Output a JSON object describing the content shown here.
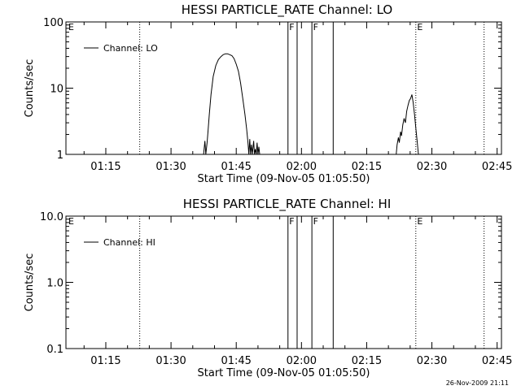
{
  "chart_data": [
    {
      "type": "line",
      "title": "HESSI PARTICLE_RATE Channel: LO",
      "xlabel": "Start Time (09-Nov-05 01:05:50)",
      "ylabel": "Counts/sec",
      "yscale": "log",
      "ylim": [
        1,
        100
      ],
      "xlim_minutes": [
        65.83,
        166.0
      ],
      "xtick_values": [
        75,
        90,
        105,
        120,
        135,
        150,
        165
      ],
      "xtick_labels": [
        "01:15",
        "01:30",
        "01:45",
        "02:00",
        "02:15",
        "02:30",
        "02:45"
      ],
      "ytick_values": [
        1,
        10,
        100
      ],
      "ytick_labels": [
        "1",
        "10",
        "100"
      ],
      "legend": {
        "label": "Channel: LO",
        "position": "top-left"
      },
      "dotted_lines_minutes": [
        82.8,
        146.3,
        162.0
      ],
      "solid_lines_minutes": [
        116.9,
        119.0,
        122.4,
        127.3
      ],
      "markers": [
        {
          "text": "E",
          "x": 66.2
        },
        {
          "text": "F",
          "x": 117.0
        },
        {
          "text": "F",
          "x": 122.5
        },
        {
          "text": "E",
          "x": 146.4
        }
      ],
      "series": [
        {
          "name": "Channel: LO",
          "segments": [
            [
              [
                97.5,
                1
              ],
              [
                97.8,
                1.6
              ],
              [
                98.0,
                1
              ],
              [
                98.3,
                1.5
              ],
              [
                98.5,
                2.2
              ],
              [
                98.8,
                4
              ],
              [
                99.2,
                8
              ],
              [
                99.7,
                15
              ],
              [
                100.3,
                22
              ],
              [
                100.9,
                27
              ],
              [
                101.5,
                30
              ],
              [
                102.0,
                32
              ],
              [
                102.5,
                33
              ],
              [
                103.0,
                33
              ],
              [
                103.5,
                32
              ],
              [
                104.0,
                31
              ],
              [
                104.5,
                28
              ],
              [
                105.0,
                23
              ],
              [
                105.5,
                18
              ],
              [
                106.0,
                12
              ],
              [
                106.5,
                7
              ],
              [
                107.0,
                4
              ],
              [
                107.4,
                2.4
              ],
              [
                107.7,
                1.5
              ],
              [
                107.9,
                1
              ],
              [
                108.1,
                1.7
              ],
              [
                108.3,
                1
              ],
              [
                108.5,
                1.4
              ],
              [
                108.7,
                1
              ],
              [
                109.0,
                1.6
              ],
              [
                109.2,
                1
              ],
              [
                109.4,
                1.2
              ],
              [
                109.6,
                1
              ],
              [
                109.8,
                1.5
              ],
              [
                110.0,
                1
              ],
              [
                110.2,
                1.3
              ],
              [
                110.4,
                1
              ]
            ],
            [
              [
                141.8,
                1
              ],
              [
                142.0,
                1.4
              ],
              [
                142.3,
                1.8
              ],
              [
                142.5,
                1.5
              ],
              [
                142.8,
                2.2
              ],
              [
                143.0,
                1.9
              ],
              [
                143.3,
                2.8
              ],
              [
                143.6,
                3.5
              ],
              [
                143.9,
                3.0
              ],
              [
                144.2,
                4.5
              ],
              [
                144.5,
                5.5
              ],
              [
                144.8,
                6.5
              ],
              [
                145.1,
                7.0
              ],
              [
                145.4,
                8.0
              ],
              [
                145.7,
                6.0
              ],
              [
                146.0,
                4.0
              ],
              [
                146.3,
                2.5
              ],
              [
                146.6,
                1.6
              ],
              [
                146.9,
                1
              ]
            ]
          ]
        }
      ]
    },
    {
      "type": "line",
      "title": "HESSI PARTICLE_RATE Channel: HI",
      "xlabel": "Start Time (09-Nov-05 01:05:50)",
      "ylabel": "Counts/sec",
      "yscale": "log",
      "ylim": [
        0.1,
        10
      ],
      "xlim_minutes": [
        65.83,
        166.0
      ],
      "xtick_values": [
        75,
        90,
        105,
        120,
        135,
        150,
        165
      ],
      "xtick_labels": [
        "01:15",
        "01:30",
        "01:45",
        "02:00",
        "02:15",
        "02:30",
        "02:45"
      ],
      "ytick_values": [
        0.1,
        1,
        10
      ],
      "ytick_labels": [
        "0.1",
        "1.0",
        "10.0"
      ],
      "legend": {
        "label": "Channel: HI",
        "position": "top-left"
      },
      "dotted_lines_minutes": [
        82.8,
        146.3,
        162.0
      ],
      "solid_lines_minutes": [
        116.9,
        119.0,
        122.4,
        127.3
      ],
      "markers": [
        {
          "text": "E",
          "x": 66.2
        },
        {
          "text": "F",
          "x": 117.0
        },
        {
          "text": "F",
          "x": 122.5
        },
        {
          "text": "E",
          "x": 146.4
        }
      ],
      "series": [
        {
          "name": "Channel: HI",
          "segments": []
        }
      ]
    }
  ],
  "timestamp": "26-Nov-2009 21:11"
}
